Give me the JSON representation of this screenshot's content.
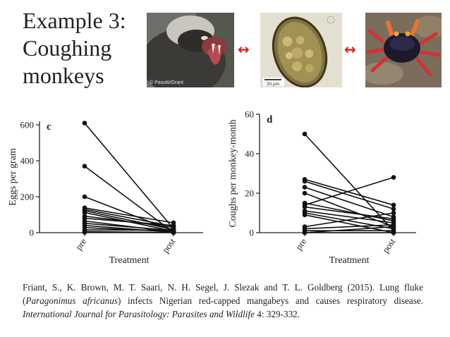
{
  "title": "Example 3:\nCoughing\nmonkeys",
  "images": {
    "monkey_credit": "© Pasotti/Grant",
    "egg_scale": "20 µm",
    "link_arrow": "↔",
    "colors": {
      "arrow": "#e02020",
      "points": "#111111"
    }
  },
  "chart_data": [
    {
      "type": "line",
      "panel_label": "c",
      "xlabel": "Treatment",
      "ylabel": "Eggs per gram",
      "categories": [
        "pre",
        "post"
      ],
      "ylim": [
        0,
        620
      ],
      "yticks": [
        0,
        200,
        400,
        600
      ],
      "grid": false,
      "series": [
        {
          "values": [
            610,
            22
          ]
        },
        {
          "values": [
            370,
            2
          ]
        },
        {
          "values": [
            200,
            10
          ]
        },
        {
          "values": [
            138,
            55
          ]
        },
        {
          "values": [
            130,
            35
          ]
        },
        {
          "values": [
            122,
            18
          ]
        },
        {
          "values": [
            112,
            8
          ]
        },
        {
          "values": [
            92,
            30
          ]
        },
        {
          "values": [
            80,
            40
          ]
        },
        {
          "values": [
            65,
            4
          ]
        },
        {
          "values": [
            52,
            12
          ]
        },
        {
          "values": [
            40,
            2
          ]
        },
        {
          "values": [
            28,
            6
          ]
        },
        {
          "values": [
            15,
            14
          ]
        },
        {
          "values": [
            6,
            1
          ]
        },
        {
          "values": [
            2,
            0
          ]
        }
      ]
    },
    {
      "type": "line",
      "panel_label": "d",
      "xlabel": "Treatment",
      "ylabel": "Coughs per monkey-month",
      "categories": [
        "pre",
        "post"
      ],
      "ylim": [
        0,
        60
      ],
      "yticks": [
        0,
        20,
        40,
        60
      ],
      "grid": false,
      "series": [
        {
          "values": [
            50,
            1
          ]
        },
        {
          "values": [
            27,
            14
          ]
        },
        {
          "values": [
            26,
            12
          ]
        },
        {
          "values": [
            23,
            8
          ]
        },
        {
          "values": [
            20,
            3
          ]
        },
        {
          "values": [
            15,
            6
          ]
        },
        {
          "values": [
            14,
            28
          ]
        },
        {
          "values": [
            13,
            7
          ]
        },
        {
          "values": [
            11,
            5
          ]
        },
        {
          "values": [
            10,
            2
          ]
        },
        {
          "values": [
            9,
            0
          ]
        },
        {
          "values": [
            3,
            10
          ]
        },
        {
          "values": [
            2,
            4
          ]
        },
        {
          "values": [
            1,
            1
          ]
        },
        {
          "values": [
            0,
            3
          ]
        },
        {
          "values": [
            0,
            0
          ]
        }
      ]
    }
  ],
  "citation": {
    "authors_year": "Friant, S., K. Brown, M. T. Saari, N. H. Segel, J. Slezak and T. L. Goldberg (2015).  Lung fluke (",
    "species": "Paragonimus africanus",
    "title_rest": ") infects Nigerian red-capped mangabeys and causes respiratory disease.  ",
    "journal": "International Journal for Parasitology: Parasites and Wildlife",
    "volume_pages": " 4: 329-332."
  }
}
